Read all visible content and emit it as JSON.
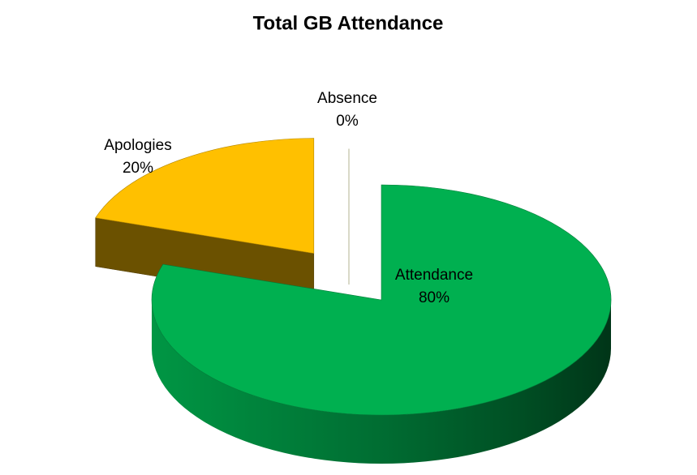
{
  "chart_data": {
    "type": "pie",
    "title": "Total GB Attendance",
    "categories": [
      "Attendance",
      "Apologies",
      "Absence"
    ],
    "values": [
      80,
      20,
      0
    ],
    "value_labels": [
      "80%",
      "20%",
      "0%"
    ],
    "colors": [
      "#00b050",
      "#ffc000",
      "#d9d9c8"
    ]
  }
}
